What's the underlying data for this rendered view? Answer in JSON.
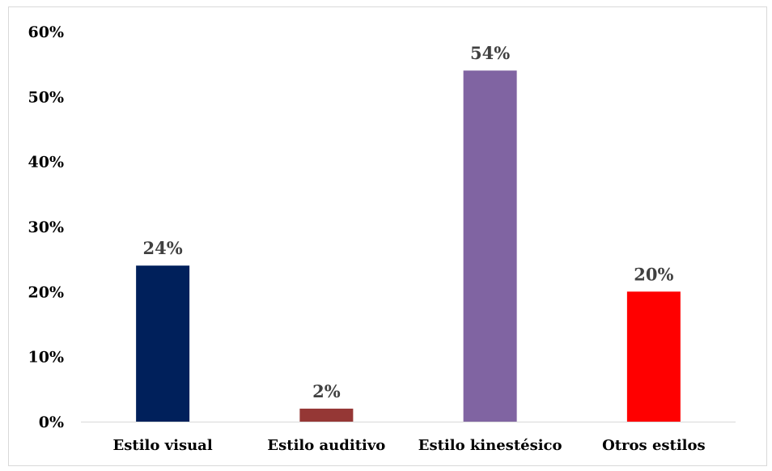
{
  "chart_data": {
    "type": "bar",
    "categories": [
      "Estilo visual",
      "Estilo auditivo",
      "Estilo kinestésico",
      "Otros estilos"
    ],
    "values": [
      24,
      2,
      54,
      20
    ],
    "data_labels": [
      "24%",
      "2%",
      "54%",
      "20%"
    ],
    "colors": [
      "#00205b",
      "#953735",
      "#8064a2",
      "#ff0000"
    ],
    "title": "",
    "xlabel": "",
    "ylabel": "",
    "ylim": [
      0,
      60
    ],
    "y_ticks": [
      0,
      10,
      20,
      30,
      40,
      50,
      60
    ],
    "y_tick_labels": [
      "0%",
      "10%",
      "20%",
      "30%",
      "40%",
      "50%",
      "60%"
    ],
    "grid": false,
    "legend": "none",
    "axis_color": "#d9d9d9"
  }
}
